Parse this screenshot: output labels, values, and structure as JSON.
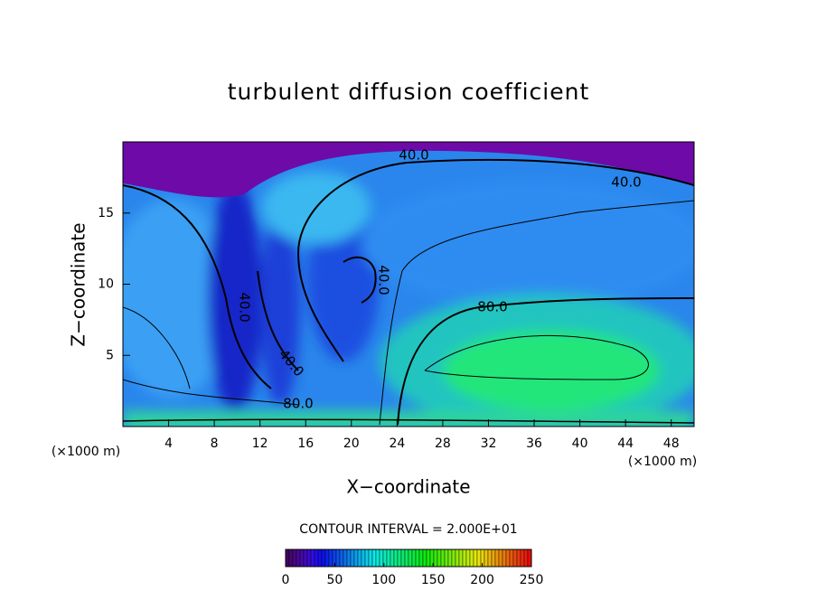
{
  "chart_data": {
    "type": "contour",
    "title": "turbulent diffusion coefficient",
    "xlabel": "X−coordinate",
    "ylabel": "Z−coordinate",
    "x_unit_label": "(×1000 m)",
    "y_unit_label": "(×1000 m)",
    "xlim": [
      0,
      50
    ],
    "ylim": [
      0,
      20
    ],
    "xticks": [
      4,
      8,
      12,
      16,
      20,
      24,
      28,
      32,
      36,
      40,
      44,
      48
    ],
    "yticks": [
      5,
      10,
      15
    ],
    "contour_labels": [
      "40.0",
      "40.0",
      "40.0",
      "40.0",
      "40.0",
      "80.0",
      "80.0"
    ],
    "contour_interval": "CONTOUR INTERVAL = 2.000E+01",
    "colorbar": {
      "range": [
        0,
        250
      ],
      "ticks": [
        0,
        50,
        100,
        150,
        200,
        250
      ]
    }
  }
}
